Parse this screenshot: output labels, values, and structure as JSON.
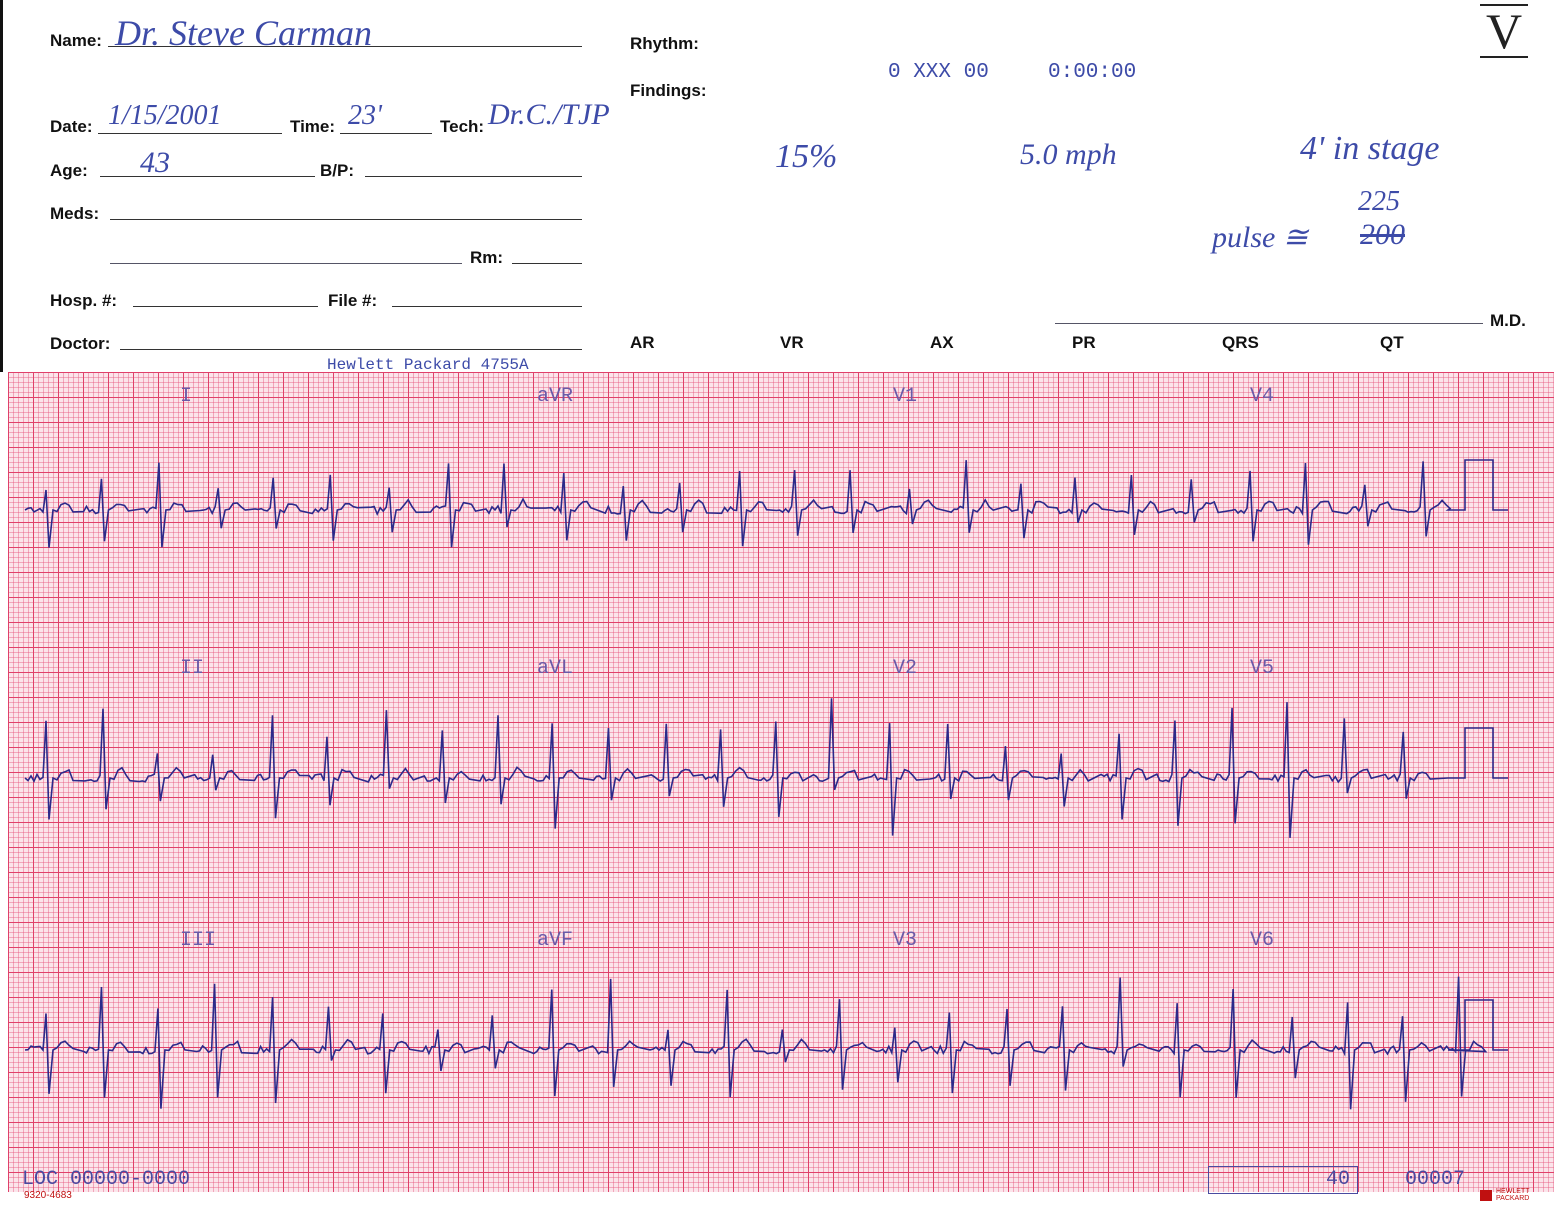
{
  "header": {
    "name": {
      "label": "Name:",
      "value": "Dr. Steve Carman"
    },
    "rhythm": "Rhythm:",
    "findings": "Findings:",
    "code": "0 XXX 00",
    "clock": "0:00:00",
    "stage_mark": "V",
    "date": {
      "label": "Date:",
      "value": "1/15/2001"
    },
    "time": {
      "label": "Time:",
      "value": "23'"
    },
    "tech": {
      "label": "Tech:",
      "value": "Dr.C./TJP"
    },
    "age": {
      "label": "Age:",
      "value": "43"
    },
    "bp": "B/P:",
    "meds": "Meds:",
    "rm": "Rm:",
    "hosp": "Hosp. #:",
    "file": "File #:",
    "doctor": "Doctor:",
    "md": "M.D.",
    "device": "Hewlett Packard 4755A",
    "measurements": [
      "AR",
      "VR",
      "AX",
      "PR",
      "QRS",
      "QT"
    ]
  },
  "notes": {
    "grade": "15%",
    "speed": "5.0 mph",
    "stage": "4' in stage",
    "pulse_label": "pulse ≅",
    "pulse_struck": "200",
    "pulse_corrected": "225"
  },
  "leads": [
    [
      "I",
      "aVR",
      "V1",
      "V4"
    ],
    [
      "II",
      "aVL",
      "V2",
      "V5"
    ],
    [
      "III",
      "aVF",
      "V3",
      "V6"
    ]
  ],
  "footer": {
    "loc": "LOC 00000-0000",
    "box": "40",
    "page": "00007",
    "form": "9320-4683",
    "brand": "HEWLETT PACKARD"
  }
}
